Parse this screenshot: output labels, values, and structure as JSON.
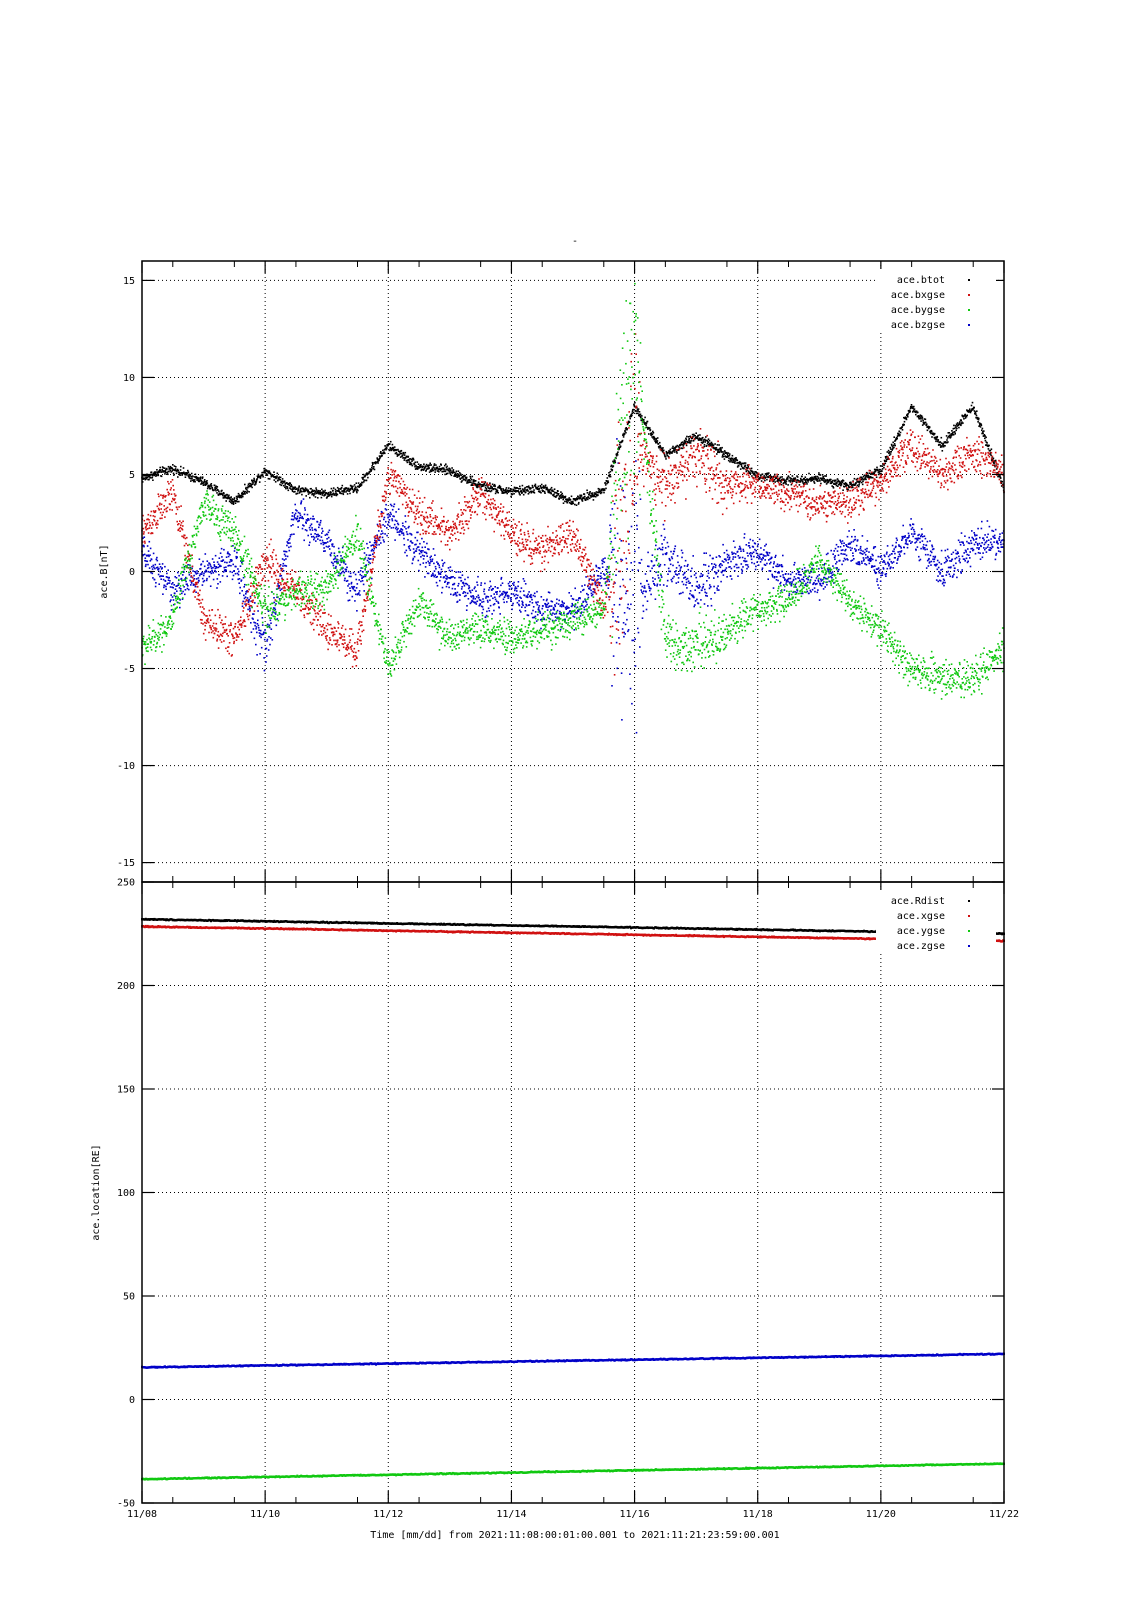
{
  "colors": {
    "black": "#000000",
    "red": "#d01010",
    "green": "#10c810",
    "blue": "#0000c8"
  },
  "figure": {
    "title": "-",
    "xlabel": "Time [mm/dd]  from 2021:11:08:00:01:00.001  to  2021:11:21:23:59:00.001"
  },
  "chart_data": [
    {
      "type": "scatter",
      "ylabel": "ace.B[nT]",
      "xlim": [
        "11/08",
        "11/22"
      ],
      "ylim": [
        -16,
        16
      ],
      "x_ticks": [
        "11/08",
        "11/10",
        "11/12",
        "11/14",
        "11/16",
        "11/18",
        "11/20",
        "11/22"
      ],
      "y_ticks": [
        15,
        10,
        5,
        0,
        -5,
        -10,
        -15
      ],
      "grid": true,
      "legend_position": "top-right",
      "series": [
        {
          "name": "ace.btot",
          "color": "#000000",
          "x": [
            "11/08",
            "11/08 12:00",
            "11/09",
            "11/09 12:00",
            "11/10",
            "11/10 12:00",
            "11/11",
            "11/11 12:00",
            "11/12",
            "11/12 12:00",
            "11/13",
            "11/13 12:00",
            "11/14",
            "11/14 12:00",
            "11/15",
            "11/15 12:00",
            "11/16",
            "11/16 12:00",
            "11/17",
            "11/17 12:00",
            "11/18",
            "11/18 12:00",
            "11/19",
            "11/19 12:00",
            "11/20",
            "11/20 12:00",
            "11/21",
            "11/21 12:00",
            "11/22"
          ],
          "y": [
            4.8,
            5.3,
            4.6,
            3.6,
            5.2,
            4.2,
            4.0,
            4.3,
            6.5,
            5.4,
            5.2,
            4.4,
            4.1,
            4.3,
            3.6,
            4.2,
            8.5,
            6.0,
            7.0,
            6.0,
            4.9,
            4.7,
            4.8,
            4.4,
            5.2,
            8.5,
            6.5,
            8.5,
            4.3
          ]
        },
        {
          "name": "ace.bxgse",
          "color": "#d01010",
          "x": [
            "11/08",
            "11/08 12:00",
            "11/09",
            "11/09 12:00",
            "11/10",
            "11/10 12:00",
            "11/11",
            "11/11 12:00",
            "11/12",
            "11/12 12:00",
            "11/13",
            "11/13 12:00",
            "11/14",
            "11/14 12:00",
            "11/15",
            "11/15 12:00",
            "11/16",
            "11/16 12:00",
            "11/17",
            "11/17 12:00",
            "11/18",
            "11/18 12:00",
            "11/19",
            "11/19 12:00",
            "11/20",
            "11/20 12:00",
            "11/21",
            "11/21 12:00",
            "11/22"
          ],
          "y": [
            2.0,
            4.0,
            -2.5,
            -3.5,
            0.5,
            -1.0,
            -3.0,
            -4.0,
            5.0,
            3.0,
            2.0,
            4.0,
            2.0,
            1.0,
            2.0,
            -2.0,
            6.5,
            4.5,
            6.0,
            4.5,
            4.5,
            4.0,
            3.5,
            3.5,
            4.5,
            6.5,
            5.0,
            6.0,
            5.0
          ]
        },
        {
          "name": "ace.bygse",
          "color": "#10c810",
          "x": [
            "11/08",
            "11/08 12:00",
            "11/09",
            "11/09 12:00",
            "11/10",
            "11/10 12:00",
            "11/11",
            "11/11 12:00",
            "11/12",
            "11/12 12:00",
            "11/13",
            "11/13 12:00",
            "11/14",
            "11/14 12:00",
            "11/15",
            "11/15 12:00",
            "11/16",
            "11/16 12:00",
            "11/17",
            "11/17 12:00",
            "11/18",
            "11/18 12:00",
            "11/19",
            "11/19 12:00",
            "11/20",
            "11/20 12:00",
            "11/21",
            "11/21 12:00",
            "11/22"
          ],
          "y": [
            -4.0,
            -2.5,
            3.5,
            2.0,
            -2.0,
            -1.0,
            -1.0,
            2.0,
            -5.0,
            -1.5,
            -3.5,
            -3.0,
            -3.5,
            -3.0,
            -2.5,
            -2.0,
            12.0,
            -3.5,
            -4.0,
            -3.0,
            -2.0,
            -1.5,
            0.5,
            -1.5,
            -3.0,
            -5.0,
            -5.5,
            -5.5,
            -4.0
          ]
        },
        {
          "name": "ace.bzgse",
          "color": "#0000c8",
          "x": [
            "11/08",
            "11/08 12:00",
            "11/09",
            "11/09 12:00",
            "11/10",
            "11/10 12:00",
            "11/11",
            "11/11 12:00",
            "11/12",
            "11/12 12:00",
            "11/13",
            "11/13 12:00",
            "11/14",
            "11/14 12:00",
            "11/15",
            "11/15 12:00",
            "11/16",
            "11/16 12:00",
            "11/17",
            "11/17 12:00",
            "11/18",
            "11/18 12:00",
            "11/19",
            "11/19 12:00",
            "11/20",
            "11/20 12:00",
            "11/21",
            "11/21 12:00",
            "11/22"
          ],
          "y": [
            1.0,
            -1.0,
            0.0,
            0.5,
            -4.0,
            3.0,
            1.5,
            -1.0,
            3.0,
            1.0,
            -0.5,
            -1.5,
            -1.0,
            -2.0,
            -2.0,
            0.0,
            -2.0,
            1.0,
            -1.0,
            0.5,
            1.0,
            -0.5,
            -0.5,
            1.5,
            0.0,
            2.0,
            0.0,
            1.5,
            1.5
          ]
        }
      ]
    },
    {
      "type": "scatter",
      "ylabel": "ace.location[RE]",
      "xlim": [
        "11/08",
        "11/22"
      ],
      "ylim": [
        -50,
        250
      ],
      "x_ticks": [
        "11/08",
        "11/10",
        "11/12",
        "11/14",
        "11/16",
        "11/18",
        "11/20",
        "11/22"
      ],
      "y_ticks": [
        250,
        200,
        150,
        100,
        50,
        0,
        -50
      ],
      "grid": true,
      "legend_position": "top-right",
      "series": [
        {
          "name": "ace.Rdist",
          "color": "#000000",
          "x": [
            "11/08",
            "11/22"
          ],
          "y": [
            232,
            225
          ]
        },
        {
          "name": "ace.xgse",
          "color": "#d01010",
          "x": [
            "11/08",
            "11/22"
          ],
          "y": [
            228.5,
            221.5
          ]
        },
        {
          "name": "ace.ygse",
          "color": "#10c810",
          "x": [
            "11/08",
            "11/22"
          ],
          "y": [
            -38.5,
            -31
          ]
        },
        {
          "name": "ace.zgse",
          "color": "#0000c8",
          "x": [
            "11/08",
            "11/22"
          ],
          "y": [
            15.5,
            22
          ]
        }
      ]
    }
  ]
}
